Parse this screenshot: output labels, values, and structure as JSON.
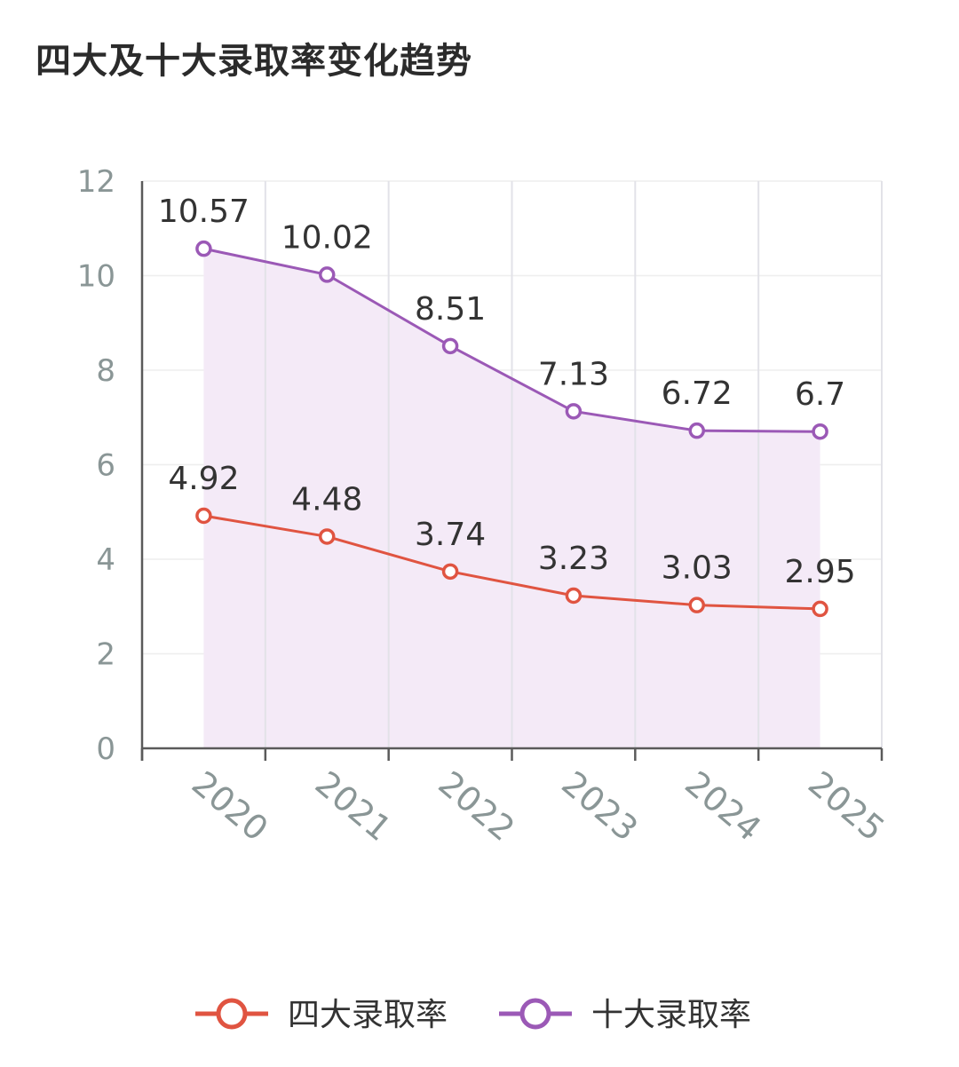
{
  "chart_data": {
    "type": "line",
    "title": "四大及十大录取率变化趋势",
    "categories": [
      "2020",
      "2021",
      "2022",
      "2023",
      "2024",
      "2025"
    ],
    "ylim": [
      0,
      12
    ],
    "yticks": [
      0,
      2,
      4,
      6,
      8,
      10,
      12
    ],
    "grid": true,
    "legend_position": "bottom-center",
    "series": [
      {
        "name": "四大录取率",
        "color": "#e05441",
        "area": false,
        "values": [
          4.92,
          4.48,
          3.74,
          3.23,
          3.03,
          2.95
        ],
        "labels": [
          "4.92",
          "4.48",
          "3.74",
          "3.23",
          "3.03",
          "2.95"
        ]
      },
      {
        "name": "十大录取率",
        "color": "#9b59b6",
        "area": true,
        "area_color": "#f4eaf7",
        "values": [
          10.57,
          10.02,
          8.51,
          7.13,
          6.72,
          6.7
        ],
        "labels": [
          "10.57",
          "10.02",
          "8.51",
          "7.13",
          "6.72",
          "6.7"
        ]
      }
    ]
  }
}
